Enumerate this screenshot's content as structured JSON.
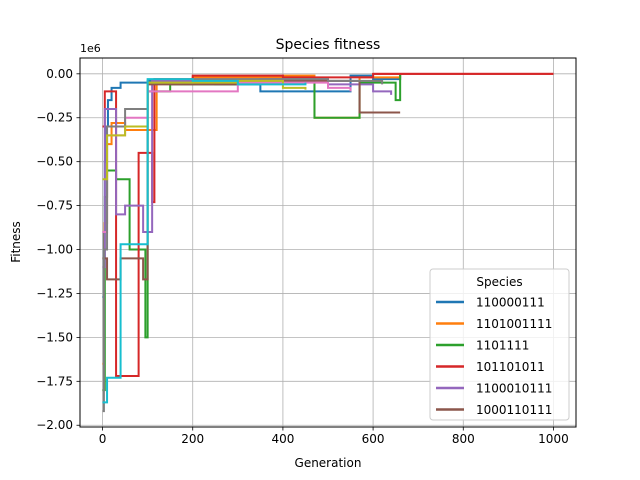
{
  "chart_data": {
    "type": "line",
    "title": "Species fitness",
    "xlabel": "Generation",
    "ylabel": "Fitness",
    "offset_label": "1e6",
    "xlim": [
      -50,
      1050
    ],
    "ylim": [
      -2.01,
      0.09
    ],
    "xticks": [
      0,
      200,
      400,
      600,
      800,
      1000
    ],
    "xtick_labels": [
      "0",
      "200",
      "400",
      "600",
      "800",
      "1000"
    ],
    "yticks": [
      0,
      -0.25,
      -0.5,
      -0.75,
      -1.0,
      -1.25,
      -1.5,
      -1.75,
      -2.0
    ],
    "ytick_labels": [
      "0.00",
      "−0.25",
      "−0.50",
      "−0.75",
      "−1.00",
      "−1.25",
      "−1.50",
      "−1.75",
      "−2.00"
    ],
    "grid": true,
    "legend": {
      "title": "Species",
      "placement": "lower right",
      "entries": [
        "110000111",
        "1101001111",
        "1101111",
        "101101011",
        "1100010111",
        "1000110111"
      ]
    },
    "series": [
      {
        "name": "110000111",
        "color": "#1f77b4",
        "x": [
          0,
          3,
          5,
          8,
          12,
          20,
          40,
          100,
          250,
          350,
          550,
          600,
          660
        ],
        "y": [
          -1.27,
          -0.9,
          -0.5,
          -0.3,
          -0.15,
          -0.08,
          -0.05,
          -0.04,
          -0.06,
          -0.1,
          -0.01,
          -0.03,
          0
        ]
      },
      {
        "name": "1101001111",
        "color": "#ff7f0e",
        "x": [
          0,
          4,
          10,
          20,
          50,
          110,
          120,
          200,
          400,
          470,
          570,
          660
        ],
        "y": [
          -1.65,
          -0.85,
          -0.4,
          -0.28,
          -0.32,
          -0.32,
          -0.05,
          -0.02,
          -0.01,
          -0.25,
          -0.02,
          0
        ]
      },
      {
        "name": "1101111",
        "color": "#2ca02c",
        "x": [
          0,
          5,
          10,
          30,
          60,
          95,
          100,
          150,
          300,
          470,
          570,
          650,
          660
        ],
        "y": [
          -1.8,
          -0.7,
          -0.55,
          -0.6,
          -1.0,
          -1.5,
          -0.1,
          -0.06,
          -0.04,
          -0.25,
          -0.05,
          -0.15,
          0
        ]
      },
      {
        "name": "101101011",
        "color": "#d62728",
        "x": [
          0,
          5,
          30,
          65,
          80,
          110,
          115,
          200,
          400,
          600,
          1000
        ],
        "y": [
          -0.3,
          -0.1,
          -1.72,
          -1.72,
          -0.45,
          -0.73,
          -0.03,
          -0.01,
          -0.02,
          0,
          0
        ]
      },
      {
        "name": "1100010111",
        "color": "#9467bd",
        "x": [
          0,
          5,
          30,
          50,
          90,
          110,
          200,
          350,
          500,
          600,
          640
        ],
        "y": [
          -1.1,
          -0.2,
          -0.8,
          -0.75,
          -0.9,
          -0.04,
          -0.05,
          -0.03,
          -0.06,
          -0.1,
          -0.12
        ]
      },
      {
        "name": "1000110111",
        "color": "#8c564b",
        "x": [
          0,
          10,
          20,
          40,
          90,
          100,
          300,
          570,
          600,
          660
        ],
        "y": [
          -1.05,
          -1.17,
          -1.17,
          -1.05,
          -1.17,
          -0.06,
          -0.04,
          -0.22,
          -0.22,
          -0.22
        ]
      },
      {
        "color": "#e377c2",
        "x": [
          0,
          10,
          50,
          100,
          300,
          500,
          550
        ],
        "y": [
          -0.9,
          -0.35,
          -0.25,
          -0.1,
          -0.05,
          -0.08,
          -0.1
        ]
      },
      {
        "color": "#7f7f7f",
        "x": [
          0,
          3,
          10,
          50,
          100,
          200,
          500,
          620
        ],
        "y": [
          -1.92,
          -1.0,
          -0.3,
          -0.2,
          -0.05,
          -0.03,
          -0.04,
          -0.06
        ]
      },
      {
        "color": "#bcbd22",
        "x": [
          0,
          10,
          50,
          100,
          300,
          400,
          450
        ],
        "y": [
          -0.6,
          -0.35,
          -0.3,
          -0.05,
          -0.04,
          -0.08,
          -0.09
        ]
      },
      {
        "color": "#17becf",
        "x": [
          0,
          10,
          20,
          40,
          100,
          200,
          300,
          450
        ],
        "y": [
          -1.87,
          -1.73,
          -1.73,
          -0.97,
          -0.03,
          -0.04,
          -0.06,
          -0.05
        ]
      }
    ]
  }
}
